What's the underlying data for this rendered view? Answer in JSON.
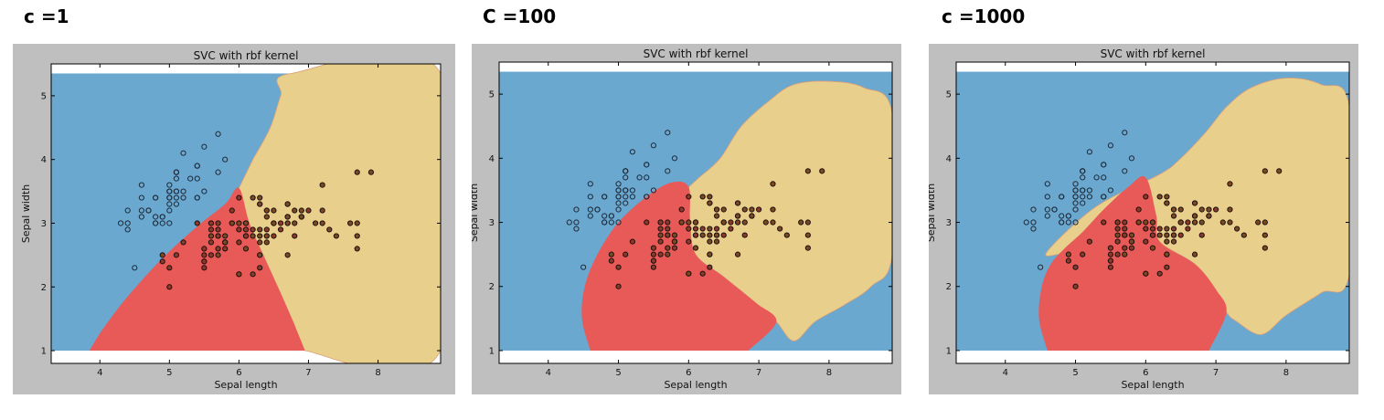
{
  "chart_data": [
    {
      "type": "scatter",
      "heading": "c =1",
      "title": "SVC with rbf kernel",
      "xlabel": "Sepal length",
      "ylabel": "Sepal width",
      "xlim": [
        3.3,
        8.9
      ],
      "ylim": [
        0.8,
        5.5
      ],
      "xticks": [
        4,
        5,
        6,
        7,
        8
      ],
      "yticks": [
        1,
        2,
        3,
        4,
        5
      ],
      "grid": false,
      "region_colors": {
        "setosa": "#6aa8d0",
        "versicolor": "#e85a58",
        "virginica": "#e9cf8c"
      }
    },
    {
      "type": "scatter",
      "heading": "C =100",
      "title": "SVC with rbf kernel",
      "xlabel": "Sepal length",
      "ylabel": "Sepal width",
      "xlim": [
        3.3,
        8.9
      ],
      "ylim": [
        0.8,
        5.5
      ],
      "xticks": [
        4,
        5,
        6,
        7,
        8
      ],
      "yticks": [
        1,
        2,
        3,
        4,
        5
      ],
      "grid": false,
      "region_colors": {
        "setosa": "#6aa8d0",
        "versicolor": "#e85a58",
        "virginica": "#e9cf8c"
      }
    },
    {
      "type": "scatter",
      "heading": "c =1000",
      "title": "SVC with rbf kernel",
      "xlabel": "Sepal length",
      "ylabel": "Sepal width",
      "xlim": [
        3.3,
        8.9
      ],
      "ylim": [
        0.8,
        5.5
      ],
      "xticks": [
        4,
        5,
        6,
        7,
        8
      ],
      "yticks": [
        1,
        2,
        3,
        4,
        5
      ],
      "grid": false,
      "region_colors": {
        "setosa": "#6aa8d0",
        "versicolor": "#e85a58",
        "virginica": "#e9cf8c"
      }
    }
  ],
  "points": {
    "setosa": [
      [
        5.1,
        3.5
      ],
      [
        4.9,
        3.0
      ],
      [
        4.7,
        3.2
      ],
      [
        4.6,
        3.1
      ],
      [
        5.0,
        3.6
      ],
      [
        5.4,
        3.9
      ],
      [
        4.6,
        3.4
      ],
      [
        5.0,
        3.4
      ],
      [
        4.4,
        2.9
      ],
      [
        4.9,
        3.1
      ],
      [
        5.4,
        3.7
      ],
      [
        4.8,
        3.4
      ],
      [
        4.8,
        3.0
      ],
      [
        4.3,
        3.0
      ],
      [
        5.8,
        4.0
      ],
      [
        5.7,
        4.4
      ],
      [
        5.4,
        3.9
      ],
      [
        5.1,
        3.5
      ],
      [
        5.7,
        3.8
      ],
      [
        5.1,
        3.8
      ],
      [
        5.4,
        3.4
      ],
      [
        5.1,
        3.7
      ],
      [
        4.6,
        3.6
      ],
      [
        5.1,
        3.3
      ],
      [
        4.8,
        3.4
      ],
      [
        5.0,
        3.0
      ],
      [
        5.0,
        3.4
      ],
      [
        5.2,
        3.5
      ],
      [
        5.2,
        3.4
      ],
      [
        4.7,
        3.2
      ],
      [
        4.8,
        3.1
      ],
      [
        5.4,
        3.4
      ],
      [
        5.2,
        4.1
      ],
      [
        5.5,
        4.2
      ],
      [
        4.9,
        3.1
      ],
      [
        5.0,
        3.2
      ],
      [
        5.5,
        3.5
      ],
      [
        4.4,
        3.0
      ],
      [
        5.1,
        3.4
      ],
      [
        5.0,
        3.5
      ],
      [
        4.5,
        2.3
      ],
      [
        4.4,
        3.2
      ],
      [
        5.0,
        3.5
      ],
      [
        5.1,
        3.8
      ],
      [
        4.8,
        3.0
      ],
      [
        5.1,
        3.8
      ],
      [
        4.6,
        3.2
      ],
      [
        5.3,
        3.7
      ],
      [
        5.0,
        3.3
      ]
    ],
    "versicolor": [
      [
        7.0,
        3.2
      ],
      [
        6.4,
        3.2
      ],
      [
        6.9,
        3.1
      ],
      [
        5.5,
        2.3
      ],
      [
        6.5,
        2.8
      ],
      [
        5.7,
        2.8
      ],
      [
        6.3,
        3.3
      ],
      [
        4.9,
        2.4
      ],
      [
        6.6,
        2.9
      ],
      [
        5.2,
        2.7
      ],
      [
        5.0,
        2.0
      ],
      [
        5.9,
        3.0
      ],
      [
        6.0,
        2.2
      ],
      [
        6.1,
        2.9
      ],
      [
        5.6,
        2.9
      ],
      [
        6.7,
        3.1
      ],
      [
        5.6,
        3.0
      ],
      [
        5.8,
        2.7
      ],
      [
        6.2,
        2.2
      ],
      [
        5.6,
        2.5
      ],
      [
        5.9,
        3.2
      ],
      [
        6.1,
        2.8
      ],
      [
        6.3,
        2.5
      ],
      [
        6.1,
        2.8
      ],
      [
        6.4,
        2.9
      ],
      [
        6.6,
        3.0
      ],
      [
        6.8,
        2.8
      ],
      [
        6.7,
        3.0
      ],
      [
        6.0,
        2.9
      ],
      [
        5.7,
        2.6
      ],
      [
        5.5,
        2.4
      ],
      [
        5.5,
        2.4
      ],
      [
        5.8,
        2.7
      ],
      [
        6.0,
        2.7
      ],
      [
        5.4,
        3.0
      ],
      [
        6.0,
        3.4
      ],
      [
        6.7,
        3.1
      ],
      [
        6.3,
        2.3
      ],
      [
        5.6,
        3.0
      ],
      [
        5.5,
        2.5
      ],
      [
        5.5,
        2.6
      ],
      [
        6.1,
        3.0
      ],
      [
        5.8,
        2.6
      ],
      [
        5.0,
        2.3
      ],
      [
        5.6,
        2.7
      ],
      [
        5.7,
        3.0
      ],
      [
        5.7,
        2.9
      ],
      [
        6.2,
        2.9
      ],
      [
        5.1,
        2.5
      ],
      [
        5.7,
        2.8
      ]
    ],
    "virginica": [
      [
        6.3,
        3.3
      ],
      [
        5.8,
        2.7
      ],
      [
        7.1,
        3.0
      ],
      [
        6.3,
        2.9
      ],
      [
        6.5,
        3.0
      ],
      [
        7.6,
        3.0
      ],
      [
        4.9,
        2.5
      ],
      [
        7.3,
        2.9
      ],
      [
        6.7,
        2.5
      ],
      [
        7.2,
        3.6
      ],
      [
        6.5,
        3.2
      ],
      [
        6.4,
        2.7
      ],
      [
        6.8,
        3.0
      ],
      [
        5.7,
        2.5
      ],
      [
        5.8,
        2.8
      ],
      [
        6.4,
        3.2
      ],
      [
        6.5,
        3.0
      ],
      [
        7.7,
        3.8
      ],
      [
        7.7,
        2.6
      ],
      [
        6.0,
        2.2
      ],
      [
        6.9,
        3.2
      ],
      [
        5.6,
        2.8
      ],
      [
        7.7,
        2.8
      ],
      [
        6.3,
        2.7
      ],
      [
        6.7,
        3.3
      ],
      [
        7.2,
        3.2
      ],
      [
        6.2,
        2.8
      ],
      [
        6.1,
        3.0
      ],
      [
        6.4,
        2.8
      ],
      [
        7.2,
        3.0
      ],
      [
        7.4,
        2.8
      ],
      [
        7.9,
        3.8
      ],
      [
        6.4,
        2.8
      ],
      [
        6.3,
        2.8
      ],
      [
        6.1,
        2.6
      ],
      [
        7.7,
        3.0
      ],
      [
        6.3,
        3.4
      ],
      [
        6.4,
        3.1
      ],
      [
        6.0,
        3.0
      ],
      [
        6.9,
        3.1
      ],
      [
        6.7,
        3.1
      ],
      [
        6.9,
        3.1
      ],
      [
        5.8,
        2.7
      ],
      [
        6.8,
        3.2
      ],
      [
        6.7,
        3.3
      ],
      [
        6.7,
        3.0
      ],
      [
        6.3,
        2.5
      ],
      [
        6.5,
        3.0
      ],
      [
        6.2,
        3.4
      ],
      [
        5.9,
        3.0
      ]
    ]
  }
}
